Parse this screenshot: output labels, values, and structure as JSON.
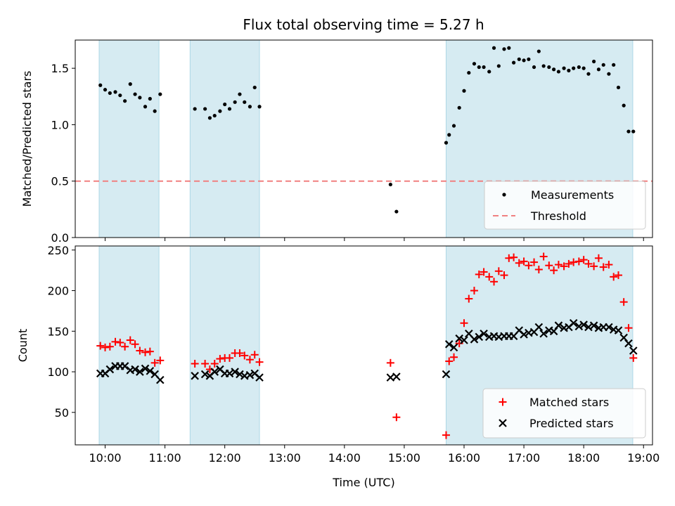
{
  "title": "Flux total observing time = 5.27 h",
  "colors": {
    "band": "#add8e6",
    "threshold": "#f08080",
    "matched": "#ff0000",
    "predicted": "#000000",
    "measure": "#000000"
  },
  "chart_data": [
    {
      "type": "scatter",
      "name": "ratio-panel",
      "ylabel": "Matched/Predicted stars",
      "xlim": [
        9.5,
        19.15
      ],
      "ylim": [
        0,
        1.75
      ],
      "yticks": [
        0.0,
        0.5,
        1.0,
        1.5
      ],
      "ytick_labels": [
        "0.0",
        "0.5",
        "1.0",
        "1.5"
      ],
      "bands": [
        [
          9.9,
          10.9
        ],
        [
          11.42,
          12.58
        ],
        [
          15.7,
          18.82
        ]
      ],
      "threshold": 0.5,
      "legend": {
        "position": "lower-right",
        "entries": [
          "Measurements",
          "Threshold"
        ]
      },
      "series": [
        {
          "name": "Measurements",
          "x": [
            9.92,
            10.0,
            10.08,
            10.17,
            10.25,
            10.33,
            10.42,
            10.5,
            10.58,
            10.67,
            10.75,
            10.83,
            10.92,
            11.5,
            11.67,
            11.75,
            11.83,
            11.92,
            12.0,
            12.08,
            12.17,
            12.25,
            12.33,
            12.42,
            12.5,
            12.58,
            14.77,
            14.87,
            15.7,
            15.75,
            15.83,
            15.92,
            16.0,
            16.08,
            16.17,
            16.25,
            16.33,
            16.42,
            16.5,
            16.58,
            16.67,
            16.75,
            16.83,
            16.92,
            17.0,
            17.08,
            17.17,
            17.25,
            17.33,
            17.42,
            17.5,
            17.58,
            17.67,
            17.75,
            17.83,
            17.92,
            18.0,
            18.08,
            18.17,
            18.25,
            18.33,
            18.42,
            18.5,
            18.58,
            18.67,
            18.75,
            18.83
          ],
          "y": [
            1.35,
            1.31,
            1.28,
            1.29,
            1.26,
            1.21,
            1.36,
            1.27,
            1.24,
            1.16,
            1.23,
            1.12,
            1.27,
            1.14,
            1.14,
            1.06,
            1.08,
            1.12,
            1.18,
            1.14,
            1.2,
            1.27,
            1.2,
            1.16,
            1.33,
            1.16,
            0.47,
            0.23,
            0.84,
            0.91,
            0.99,
            1.15,
            1.3,
            1.46,
            1.54,
            1.51,
            1.51,
            1.47,
            1.68,
            1.52,
            1.67,
            1.68,
            1.55,
            1.58,
            1.57,
            1.58,
            1.51,
            1.65,
            1.52,
            1.51,
            1.49,
            1.47,
            1.5,
            1.48,
            1.5,
            1.51,
            1.5,
            1.45,
            1.56,
            1.49,
            1.53,
            1.45,
            1.53,
            1.33,
            1.17,
            0.94,
            0.94
          ]
        }
      ]
    },
    {
      "type": "scatter",
      "name": "count-panel",
      "ylabel": "Count",
      "xlabel": "Time (UTC)",
      "xlim": [
        9.5,
        19.15
      ],
      "ylim": [
        10,
        255
      ],
      "yticks": [
        50,
        100,
        150,
        200,
        250
      ],
      "ytick_labels": [
        "50",
        "100",
        "150",
        "200",
        "250"
      ],
      "xticks": [
        10,
        11,
        12,
        13,
        14,
        15,
        16,
        17,
        18,
        19
      ],
      "xtick_labels": [
        "10:00",
        "11:00",
        "12:00",
        "13:00",
        "14:00",
        "15:00",
        "16:00",
        "17:00",
        "18:00",
        "19:00"
      ],
      "bands": [
        [
          9.9,
          10.9
        ],
        [
          11.42,
          12.58
        ],
        [
          15.7,
          18.82
        ]
      ],
      "legend": {
        "position": "lower-right",
        "entries": [
          "Matched stars",
          "Predicted stars"
        ]
      },
      "series": [
        {
          "name": "Matched stars",
          "marker": "plus",
          "x": [
            9.92,
            10.0,
            10.08,
            10.17,
            10.25,
            10.33,
            10.42,
            10.5,
            10.58,
            10.67,
            10.75,
            10.83,
            10.92,
            11.5,
            11.67,
            11.75,
            11.83,
            11.92,
            12.0,
            12.08,
            12.17,
            12.25,
            12.33,
            12.42,
            12.5,
            12.58,
            14.77,
            14.87,
            15.7,
            15.75,
            15.83,
            15.92,
            16.0,
            16.08,
            16.17,
            16.25,
            16.33,
            16.42,
            16.5,
            16.58,
            16.67,
            16.75,
            16.83,
            16.92,
            17.0,
            17.08,
            17.17,
            17.25,
            17.33,
            17.42,
            17.5,
            17.58,
            17.67,
            17.75,
            17.83,
            17.92,
            18.0,
            18.08,
            18.17,
            18.25,
            18.33,
            18.42,
            18.5,
            18.58,
            18.67,
            18.75,
            18.83
          ],
          "y": [
            132,
            130,
            131,
            137,
            136,
            131,
            139,
            134,
            126,
            124,
            125,
            111,
            114,
            110,
            110,
            103,
            110,
            116,
            117,
            117,
            123,
            123,
            120,
            115,
            121,
            112,
            111,
            44,
            22,
            113,
            118,
            135,
            160,
            190,
            200,
            220,
            223,
            217,
            211,
            224,
            219,
            240,
            241,
            234,
            236,
            231,
            235,
            226,
            242,
            231,
            225,
            232,
            230,
            233,
            235,
            236,
            238,
            233,
            230,
            240,
            229,
            232,
            217,
            219,
            186,
            154,
            117
          ]
        },
        {
          "name": "Predicted stars",
          "marker": "x",
          "x": [
            9.92,
            10.0,
            10.08,
            10.17,
            10.25,
            10.33,
            10.42,
            10.5,
            10.58,
            10.67,
            10.75,
            10.83,
            10.92,
            11.5,
            11.67,
            11.75,
            11.83,
            11.92,
            12.0,
            12.08,
            12.17,
            12.25,
            12.33,
            12.42,
            12.5,
            12.58,
            14.77,
            14.87,
            15.7,
            15.75,
            15.83,
            15.92,
            16.0,
            16.08,
            16.17,
            16.25,
            16.33,
            16.42,
            16.5,
            16.58,
            16.67,
            16.75,
            16.83,
            16.92,
            17.0,
            17.08,
            17.17,
            17.25,
            17.33,
            17.42,
            17.5,
            17.58,
            17.67,
            17.75,
            17.83,
            17.92,
            18.0,
            18.08,
            18.17,
            18.25,
            18.33,
            18.42,
            18.5,
            18.58,
            18.67,
            18.75,
            18.83
          ],
          "y": [
            98,
            98,
            103,
            107,
            107,
            107,
            102,
            103,
            100,
            104,
            101,
            97,
            90,
            95,
            97,
            95,
            100,
            103,
            98,
            98,
            100,
            97,
            95,
            96,
            98,
            93,
            93,
            94,
            97,
            134,
            130,
            141,
            139,
            147,
            140,
            143,
            147,
            143,
            144,
            143,
            144,
            144,
            144,
            151,
            146,
            148,
            149,
            155,
            147,
            151,
            150,
            157,
            154,
            155,
            160,
            156,
            158,
            155,
            157,
            154,
            155,
            155,
            152,
            151,
            142,
            135,
            126
          ]
        }
      ]
    }
  ]
}
